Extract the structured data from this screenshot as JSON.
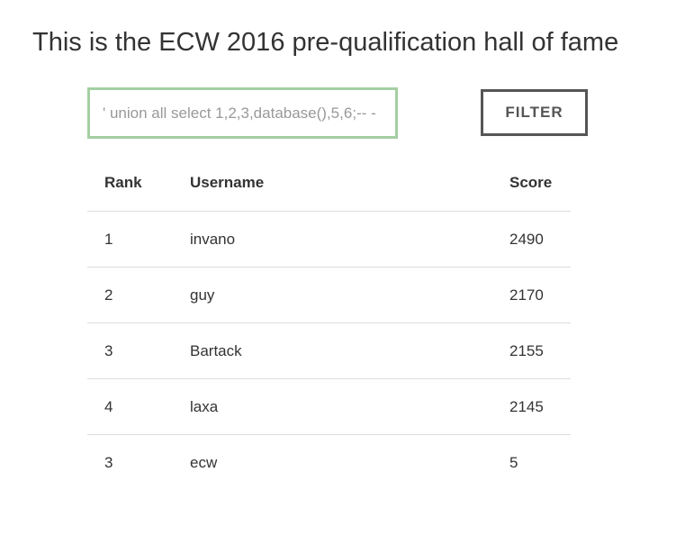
{
  "page": {
    "title": "This is the ECW 2016 pre-qualification hall of fame"
  },
  "filter": {
    "input_value": "' union all select 1,2,3,database(),5,6;-- -",
    "button_label": "FILTER"
  },
  "table": {
    "headers": {
      "rank": "Rank",
      "username": "Username",
      "score": "Score"
    },
    "rows": [
      {
        "rank": "1",
        "username": "invano",
        "score": "2490"
      },
      {
        "rank": "2",
        "username": "guy",
        "score": "2170"
      },
      {
        "rank": "3",
        "username": "Bartack",
        "score": "2155"
      },
      {
        "rank": "4",
        "username": "laxa",
        "score": "2145"
      },
      {
        "rank": "3",
        "username": "ecw",
        "score": "5"
      }
    ]
  },
  "colors": {
    "input_border": "#a3cfa3",
    "button_border": "#555555",
    "row_divider": "#dddddd"
  }
}
